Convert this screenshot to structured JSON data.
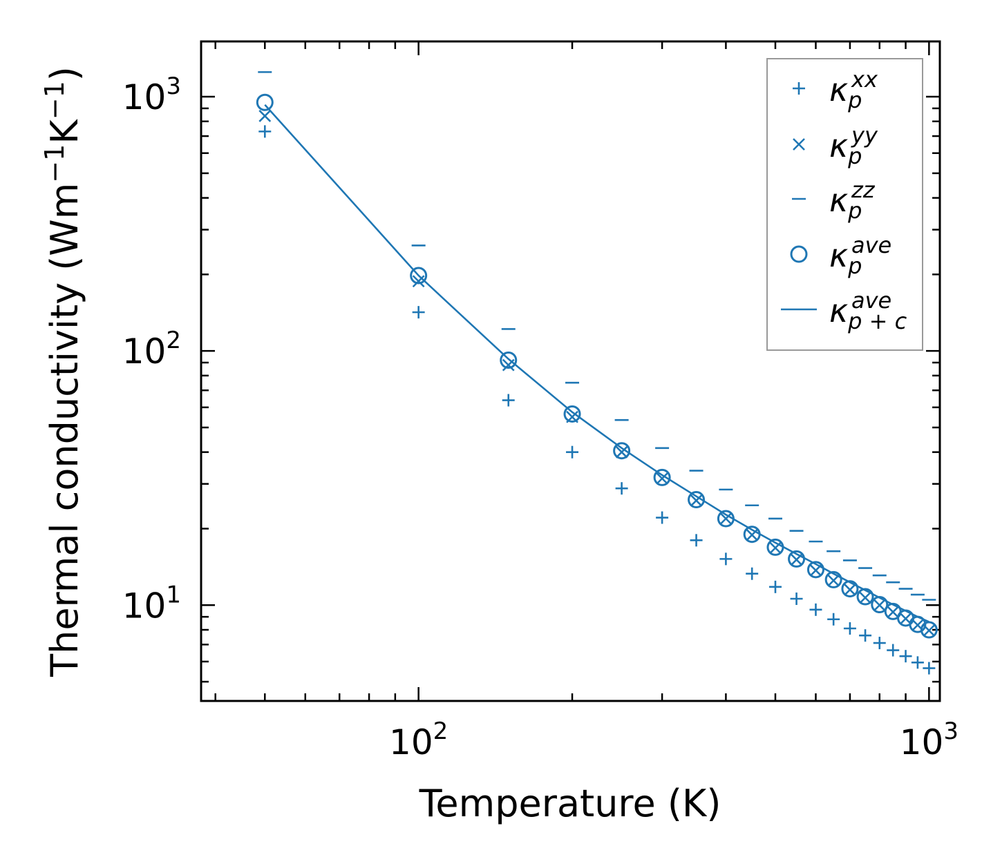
{
  "chart_data": {
    "type": "scatter",
    "title": "",
    "xlabel": "Temperature (K)",
    "ylabel": "Thermal conductivity (Wm",
    "ylabel_sup1": "−1",
    "ylabel_mid": "K",
    "ylabel_sup2": "−1",
    "ylabel_end": ")",
    "xscale": "log",
    "yscale": "log",
    "xlim": [
      37.5,
      1050
    ],
    "ylim": [
      4.2,
      1650
    ],
    "x_ticks": [
      {
        "value": 100,
        "base": "10",
        "exp": "2"
      },
      {
        "value": 1000,
        "base": "10",
        "exp": "3"
      }
    ],
    "y_ticks": [
      {
        "value": 10,
        "base": "10",
        "exp": "1"
      },
      {
        "value": 100,
        "base": "10",
        "exp": "2"
      },
      {
        "value": 1000,
        "base": "10",
        "exp": "3"
      }
    ],
    "color": "#1f77b4",
    "x": [
      50,
      100,
      150,
      200,
      250,
      300,
      350,
      400,
      450,
      500,
      550,
      600,
      650,
      700,
      750,
      800,
      850,
      900,
      950,
      1000
    ],
    "series": [
      {
        "name": "kxx",
        "label": "κ",
        "sub": "p",
        "sup": "xx",
        "marker": "plus",
        "values": [
          730,
          142,
          64,
          40,
          28.8,
          22.1,
          18.0,
          15.2,
          13.3,
          11.8,
          10.6,
          9.6,
          8.8,
          8.1,
          7.6,
          7.1,
          6.65,
          6.3,
          5.95,
          5.65
        ]
      },
      {
        "name": "kyy",
        "label": "κ",
        "sub": "p",
        "sup": "yy",
        "marker": "x",
        "values": [
          840,
          188,
          88,
          55,
          40,
          31.5,
          25.8,
          21.9,
          18.9,
          16.8,
          15.1,
          13.7,
          12.5,
          11.5,
          10.7,
          10.0,
          9.4,
          8.85,
          8.35,
          7.95
        ]
      },
      {
        "name": "kzz",
        "label": "κ",
        "sub": "p",
        "sup": "zz",
        "marker": "hline",
        "values": [
          1250,
          260,
          122,
          75,
          53.5,
          41.5,
          33.8,
          28.5,
          24.7,
          21.9,
          19.6,
          17.8,
          16.3,
          15.0,
          14.0,
          13.1,
          12.3,
          11.6,
          11.0,
          10.5
        ]
      },
      {
        "name": "kave",
        "label": "κ",
        "sub": "p",
        "sup": "ave",
        "marker": "circle",
        "values": [
          950,
          198,
          92,
          56.5,
          40.5,
          31.8,
          26.0,
          21.9,
          19.0,
          16.9,
          15.2,
          13.8,
          12.6,
          11.6,
          10.8,
          10.05,
          9.45,
          8.9,
          8.4,
          8.0
        ]
      },
      {
        "name": "kave_pc",
        "label": "κ",
        "sub": "p + c",
        "sup": "ave",
        "marker": "line",
        "values": [
          930,
          198,
          93,
          57.5,
          41.5,
          32.5,
          26.8,
          22.7,
          19.8,
          17.6,
          15.9,
          14.5,
          13.3,
          12.3,
          11.45,
          10.7,
          10.05,
          9.5,
          9.0,
          8.6
        ]
      }
    ],
    "legend_position": "upper right"
  }
}
